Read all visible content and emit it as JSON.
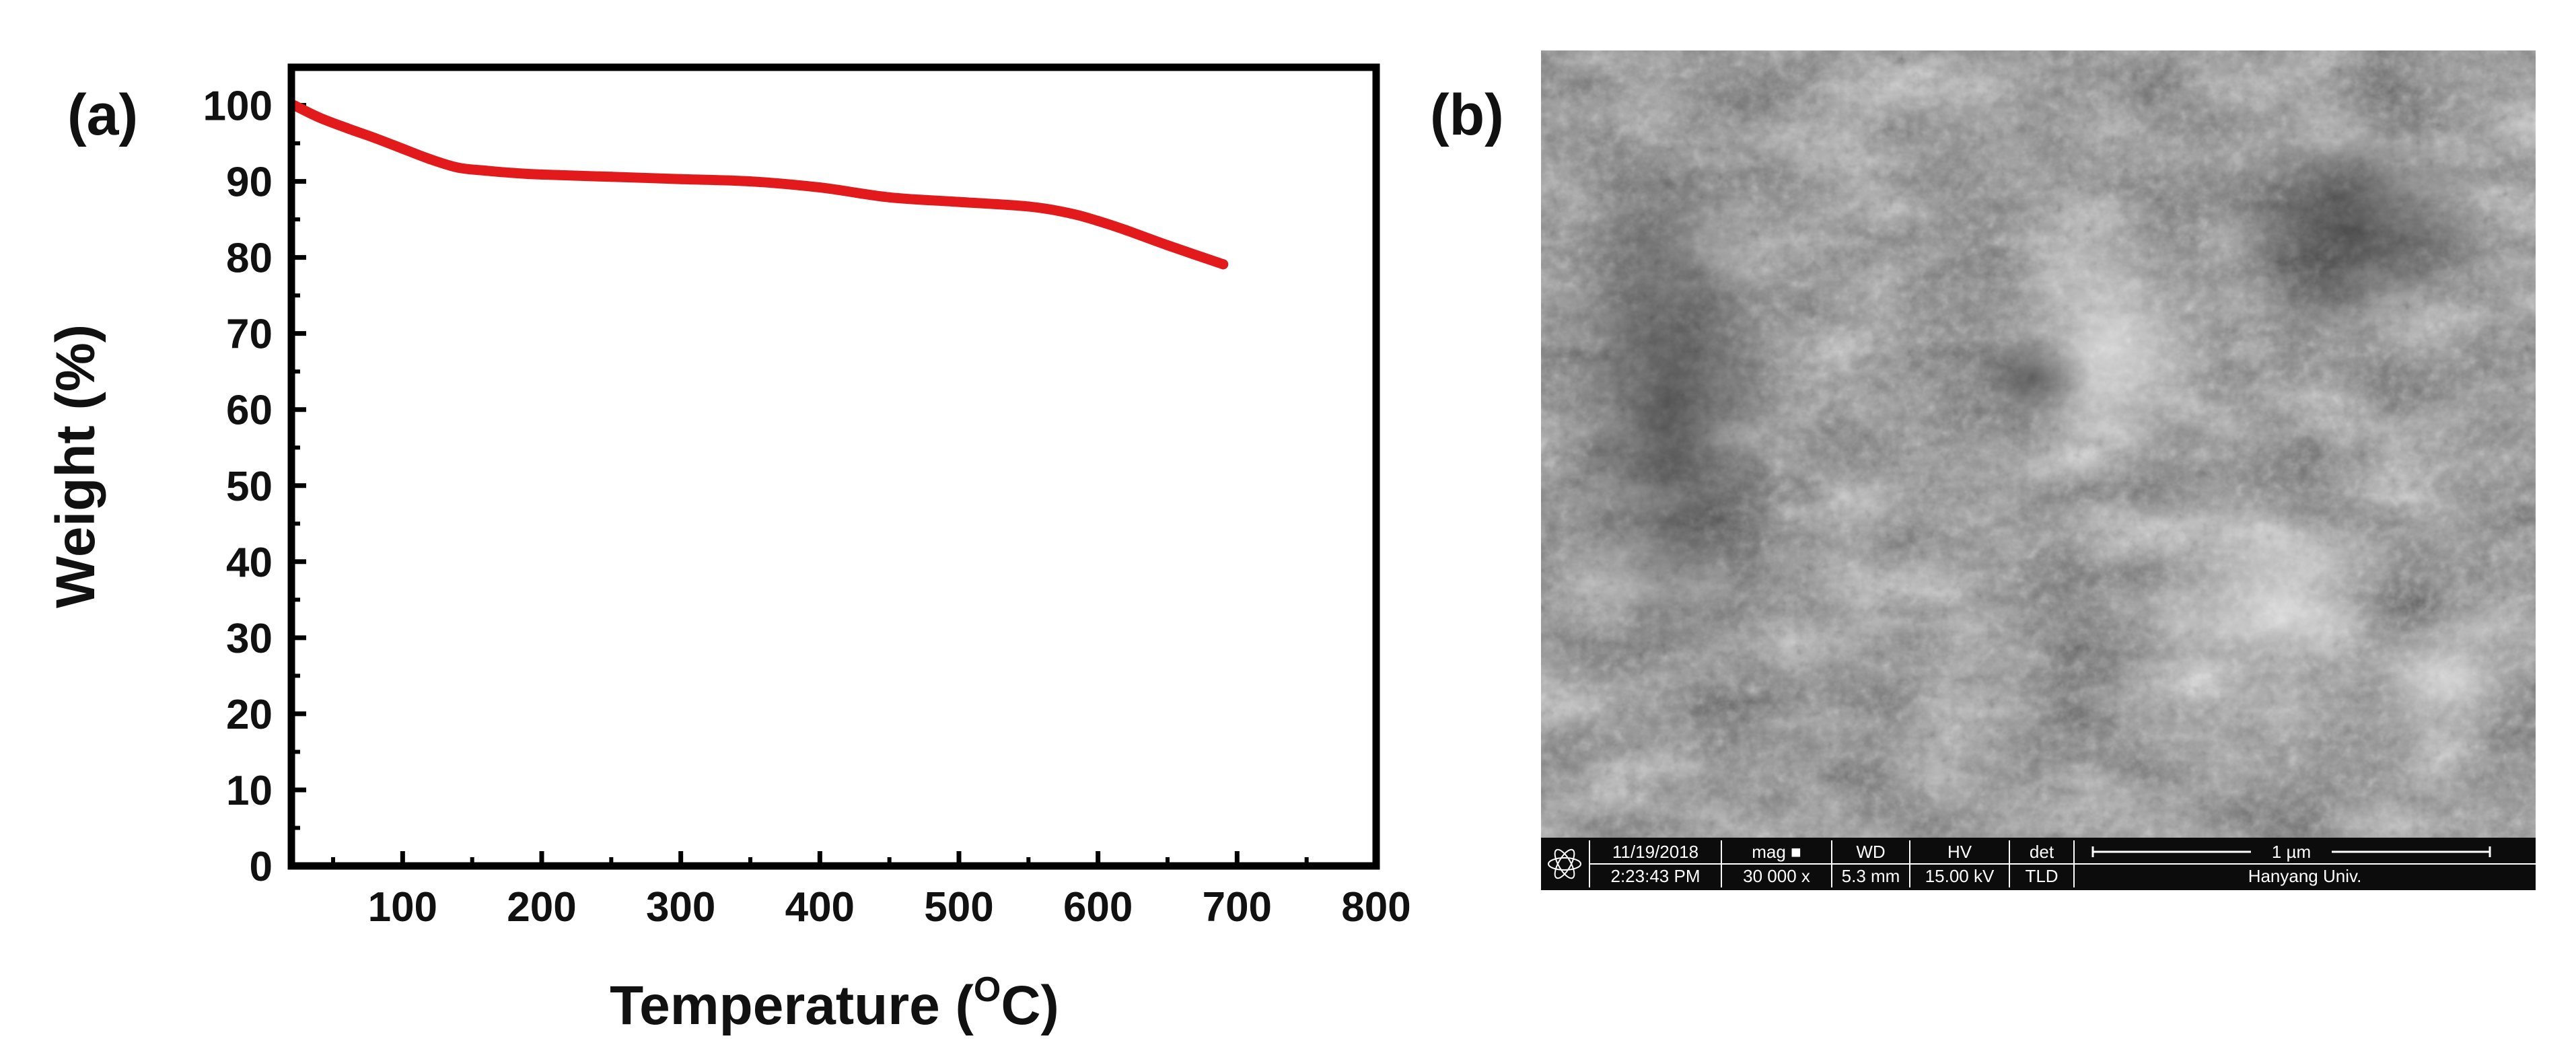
{
  "panel_a": {
    "label": "(a)"
  },
  "panel_b": {
    "label": "(b)"
  },
  "chart_data": {
    "type": "line",
    "title": "",
    "xlabel": "Temperature (",
    "xlabel_superscript": "O",
    "xlabel_suffix": "C)",
    "ylabel": "Weight (%)",
    "xlim": [
      20,
      800
    ],
    "ylim": [
      0,
      105
    ],
    "x_ticks": [
      "100",
      "200",
      "300",
      "400",
      "500",
      "600",
      "700",
      "800"
    ],
    "y_ticks": [
      "0",
      "10",
      "20",
      "30",
      "40",
      "50",
      "60",
      "70",
      "80",
      "90",
      "100"
    ],
    "line_color": "#e31a1c",
    "grid": false,
    "series": [
      {
        "x": [
          22,
          40,
          60,
          80,
          100,
          120,
          140,
          160,
          180,
          200,
          250,
          300,
          350,
          400,
          450,
          500,
          550,
          580,
          600,
          620,
          650,
          690
        ],
        "y": [
          100,
          98.4,
          97.0,
          95.7,
          94.3,
          92.9,
          91.8,
          91.4,
          91.1,
          90.9,
          90.6,
          90.3,
          90.0,
          89.2,
          87.9,
          87.3,
          86.7,
          85.8,
          84.8,
          83.6,
          81.6,
          79.1
        ]
      }
    ]
  },
  "sem_image": {
    "date": "11/19/2018",
    "time": "2:23:43 PM",
    "mag_label": "mag",
    "mag_icon": "■",
    "mag_value": "30 000 x",
    "wd_label": "WD",
    "wd_value": "5.3 mm",
    "hv_label": "HV",
    "hv_value": "15.00 kV",
    "det_label": "det",
    "det_value": "TLD",
    "scale_label": "1 µm",
    "institution": "Hanyang Univ."
  }
}
